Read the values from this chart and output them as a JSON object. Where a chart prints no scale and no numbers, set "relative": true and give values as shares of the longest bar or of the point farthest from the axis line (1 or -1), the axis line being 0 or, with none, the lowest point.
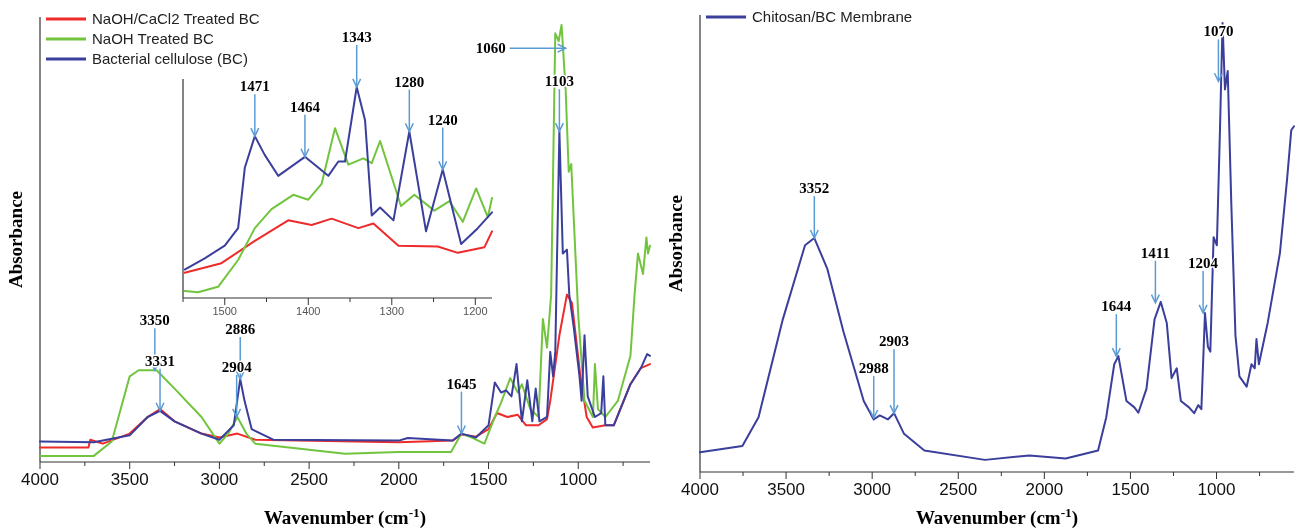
{
  "chart_data": [
    {
      "type": "line",
      "relative": true,
      "xlabel": "Wavenumber (cm$^{-1}$)",
      "ylabel": "Absorbance",
      "legend": "top left",
      "xlim": [
        4000,
        600
      ],
      "xticks": [
        4000,
        {
          "value": 3750,
          "label": null
        },
        3500,
        {
          "value": 3250,
          "label": null
        },
        3000,
        {
          "value": 2750,
          "label": null
        },
        2500,
        {
          "value": 2250,
          "label": null
        },
        2000,
        {
          "value": 1750,
          "label": null
        },
        1500,
        {
          "value": 1250,
          "label": null
        },
        1000,
        {
          "value": 750,
          "label": null
        }
      ],
      "series": [
        {
          "name": "NaOH/CaCl2 Treated BC",
          "color": "#ee2a2a",
          "x": [
            4000,
            3730,
            3720,
            3650,
            3500,
            3400,
            3331,
            3250,
            3100,
            3000,
            2900,
            2800,
            2000,
            1700,
            1651,
            1570,
            1500,
            1453,
            1395,
            1337,
            1291,
            1221,
            1174,
            1156,
            1105,
            1063,
            1035,
            988,
            953,
            919,
            849,
            802,
            709,
            651,
            600
          ],
          "values": [
            0.033,
            0.033,
            0.051,
            0.042,
            0.065,
            0.103,
            0.121,
            0.093,
            0.065,
            0.056,
            0.065,
            0.051,
            0.045,
            0.049,
            0.063,
            0.058,
            0.075,
            0.112,
            0.103,
            0.108,
            0.084,
            0.084,
            0.098,
            0.14,
            0.29,
            0.383,
            0.364,
            0.196,
            0.103,
            0.079,
            0.084,
            0.084,
            0.178,
            0.215,
            0.224
          ]
        },
        {
          "name": "NaOH Treated BC",
          "color": "#72c43e",
          "x": [
            4000,
            3700,
            3600,
            3500,
            3450,
            3350,
            3250,
            3100,
            3000,
            2950,
            2900,
            2850,
            2800,
            2500,
            2300,
            2000,
            1750,
            1709,
            1651,
            1593,
            1523,
            1465,
            1430,
            1379,
            1337,
            1314,
            1267,
            1221,
            1197,
            1174,
            1151,
            1128,
            1109,
            1093,
            1070,
            1053,
            1039,
            1000,
            965,
            918,
            907,
            890,
            849,
            779,
            709,
            686,
            667,
            639,
            620,
            611,
            600
          ],
          "values": [
            0.014,
            0.014,
            0.047,
            0.196,
            0.21,
            0.21,
            0.168,
            0.103,
            0.042,
            0.065,
            0.103,
            0.065,
            0.042,
            0.028,
            0.019,
            0.023,
            0.023,
            0.023,
            0.065,
            0.056,
            0.042,
            0.103,
            0.136,
            0.192,
            0.159,
            0.178,
            0.121,
            0.103,
            0.327,
            0.262,
            0.383,
            0.981,
            0.963,
            1.0,
            0.85,
            0.664,
            0.682,
            0.336,
            0.14,
            0.103,
            0.224,
            0.121,
            0.103,
            0.14,
            0.243,
            0.383,
            0.477,
            0.43,
            0.514,
            0.477,
            0.495
          ]
        },
        {
          "name": "Bacterial cellulose (BC)",
          "color": "#3b3f9c",
          "x": [
            4000,
            3700,
            3500,
            3400,
            3331,
            3250,
            3100,
            3000,
            2920,
            2884,
            2860,
            2820,
            2700,
            2000,
            1950,
            1700,
            1651,
            1570,
            1500,
            1465,
            1430,
            1402,
            1372,
            1344,
            1314,
            1284,
            1256,
            1237,
            1216,
            1174,
            1156,
            1140,
            1128,
            1105,
            1086,
            1063,
            1050,
            1025,
            993,
            981,
            965,
            947,
            907,
            872,
            860,
            849,
            802,
            709,
            651,
            616,
            600
          ],
          "values": [
            0.047,
            0.045,
            0.061,
            0.103,
            0.117,
            0.093,
            0.065,
            0.051,
            0.084,
            0.19,
            0.14,
            0.075,
            0.051,
            0.049,
            0.055,
            0.049,
            0.065,
            0.056,
            0.084,
            0.182,
            0.159,
            0.164,
            0.15,
            0.224,
            0.093,
            0.187,
            0.093,
            0.168,
            0.093,
            0.103,
            0.252,
            0.196,
            0.252,
            0.757,
            0.477,
            0.486,
            0.383,
            0.308,
            0.196,
            0.14,
            0.29,
            0.15,
            0.103,
            0.112,
            0.196,
            0.084,
            0.084,
            0.178,
            0.215,
            0.247,
            0.243
          ]
        }
      ],
      "annotations": [
        {
          "text": "3350",
          "x": 3360,
          "y": 0.21
        },
        {
          "text": "3331",
          "x": 3331,
          "y": 0.117
        },
        {
          "text": "2886",
          "x": 2884,
          "y": 0.19
        },
        {
          "text": "2904",
          "x": 2904,
          "y": 0.103
        },
        {
          "text": "1645",
          "x": 1651,
          "y": 0.065
        },
        {
          "text": "1103",
          "x": 1105,
          "y": 0.757
        },
        {
          "text": "1060",
          "x": 1070,
          "y": 0.947
        }
      ]
    },
    {
      "type": "line",
      "relative": true,
      "xlim": [
        1550,
        1180
      ],
      "xticks": [
        {
          "value": 1550,
          "label": null
        },
        1500,
        {
          "value": 1450,
          "label": null
        },
        1400,
        {
          "value": 1350,
          "label": null
        },
        1300,
        {
          "value": 1250,
          "label": null
        },
        1200
      ],
      "series": [
        {
          "color": "#ee2a2a",
          "x": [
            1548,
            1504,
            1464,
            1424,
            1396,
            1372,
            1340,
            1322,
            1292,
            1245,
            1221,
            1189,
            1180
          ],
          "values": [
            0.12,
            0.165,
            0.271,
            0.368,
            0.346,
            0.376,
            0.331,
            0.353,
            0.248,
            0.244,
            0.214,
            0.241,
            0.316
          ]
        },
        {
          "color": "#72c43e",
          "x": [
            1548,
            1532,
            1508,
            1484,
            1464,
            1444,
            1418,
            1400,
            1384,
            1368,
            1352,
            1334,
            1324,
            1314,
            1289,
            1273,
            1249,
            1231,
            1215,
            1199,
            1185,
            1180
          ],
          "values": [
            0.033,
            0.027,
            0.053,
            0.18,
            0.331,
            0.421,
            0.489,
            0.466,
            0.541,
            0.805,
            0.632,
            0.662,
            0.639,
            0.744,
            0.436,
            0.489,
            0.414,
            0.459,
            0.361,
            0.519,
            0.383,
            0.474
          ]
        },
        {
          "color": "#3b3f9c",
          "x": [
            1548,
            1524,
            1500,
            1484,
            1476,
            1464,
            1452,
            1436,
            1404,
            1376,
            1364,
            1356,
            1342,
            1332,
            1324,
            1314,
            1298,
            1279,
            1259,
            1239,
            1217,
            1197,
            1180
          ],
          "values": [
            0.135,
            0.188,
            0.248,
            0.331,
            0.617,
            0.767,
            0.677,
            0.579,
            0.669,
            0.579,
            0.647,
            0.647,
            1.0,
            0.842,
            0.391,
            0.429,
            0.368,
            0.789,
            0.316,
            0.609,
            0.256,
            0.331,
            0.406
          ]
        }
      ],
      "annotations": [
        {
          "text": "1471",
          "x": 1464,
          "y": 0.767
        },
        {
          "text": "1464",
          "x": 1404,
          "y": 0.669
        },
        {
          "text": "1343",
          "x": 1342,
          "y": 1.0
        },
        {
          "text": "1280",
          "x": 1279,
          "y": 0.789
        },
        {
          "text": "1240",
          "x": 1239,
          "y": 0.609
        }
      ]
    },
    {
      "type": "line",
      "relative": true,
      "xlabel": "Wavenumber (cm$^{-1}$)",
      "ylabel": "Absorbance",
      "legend": "top left",
      "xlim": [
        4000,
        550
      ],
      "xticks": [
        4000,
        {
          "value": 3750,
          "label": null
        },
        3500,
        {
          "value": 3250,
          "label": null
        },
        3000,
        {
          "value": 2750,
          "label": null
        },
        2500,
        {
          "value": 2250,
          "label": null
        },
        2000,
        {
          "value": 1750,
          "label": null
        },
        1500,
        {
          "value": 1250,
          "label": null
        },
        1000,
        {
          "value": 750,
          "label": null
        }
      ],
      "series": [
        {
          "name": "Chitosan/BC Membrane",
          "color": "#3b3f9c",
          "x": [
            4000,
            3754,
            3660,
            3519,
            3390,
            3336,
            3261,
            3167,
            3049,
            2991,
            2956,
            2909,
            2873,
            2815,
            2697,
            2345,
            2087,
            1876,
            1688,
            1641,
            1594,
            1570,
            1523,
            1477,
            1454,
            1407,
            1360,
            1324,
            1289,
            1261,
            1231,
            1207,
            1160,
            1130,
            1106,
            1088,
            1067,
            1050,
            1036,
            1017,
            998,
            980,
            965,
            951,
            935,
            914,
            890,
            867,
            825,
            797,
            778,
            768,
            754,
            703,
            632,
            590,
            566,
            550
          ],
          "values": [
            0.044,
            0.058,
            0.122,
            0.34,
            0.505,
            0.521,
            0.453,
            0.313,
            0.158,
            0.117,
            0.126,
            0.117,
            0.131,
            0.085,
            0.048,
            0.027,
            0.037,
            0.03,
            0.048,
            0.121,
            0.24,
            0.258,
            0.158,
            0.144,
            0.132,
            0.185,
            0.34,
            0.379,
            0.332,
            0.209,
            0.231,
            0.158,
            0.144,
            0.131,
            0.149,
            0.14,
            0.354,
            0.279,
            0.268,
            0.523,
            0.505,
            0.761,
            1.0,
            0.852,
            0.893,
            0.596,
            0.304,
            0.213,
            0.19,
            0.24,
            0.231,
            0.296,
            0.24,
            0.332,
            0.487,
            0.653,
            0.761,
            0.77
          ]
        }
      ],
      "annotations": [
        {
          "text": "3352",
          "x": 3336,
          "y": 0.521
        },
        {
          "text": "2988",
          "x": 2991,
          "y": 0.12
        },
        {
          "text": "2903",
          "x": 2873,
          "y": 0.131
        },
        {
          "text": "1644",
          "x": 1582,
          "y": 0.258
        },
        {
          "text": "1411",
          "x": 1355,
          "y": 0.377
        },
        {
          "text": "1204",
          "x": 1078,
          "y": 0.354
        },
        {
          "text": "1070",
          "x": 989,
          "y": 0.87
        }
      ]
    }
  ]
}
